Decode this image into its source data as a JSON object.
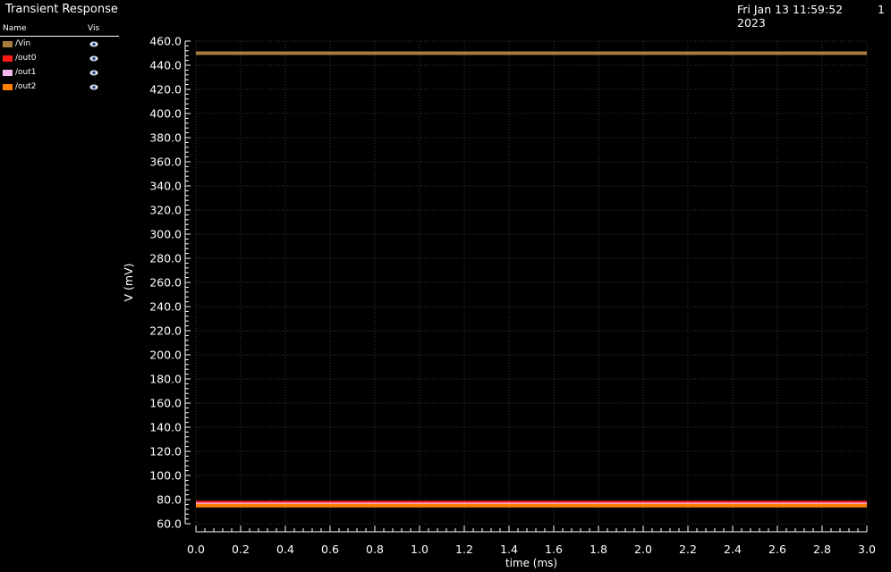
{
  "header": {
    "title": "Transient Response",
    "date": "Fri Jan 13 11:59:52 2023",
    "page": "1"
  },
  "legend": {
    "name_header": "Name",
    "vis_header": "Vis",
    "icon": "eye-icon"
  },
  "chart_data": {
    "type": "line",
    "xlabel": "time (ms)",
    "ylabel": "V (mV)",
    "xlim": [
      0.0,
      3.0
    ],
    "ylim": [
      60.0,
      460.0
    ],
    "x_ticks": [
      "0.0",
      "0.2",
      "0.4",
      "0.6",
      "0.8",
      "1.0",
      "1.2",
      "1.4",
      "1.6",
      "1.8",
      "2.0",
      "2.2",
      "2.4",
      "2.6",
      "2.8",
      "3.0"
    ],
    "y_ticks": [
      "460.0",
      "440.0",
      "420.0",
      "400.0",
      "380.0",
      "360.0",
      "340.0",
      "320.0",
      "300.0",
      "280.0",
      "260.0",
      "240.0",
      "220.0",
      "200.0",
      "180.0",
      "160.0",
      "140.0",
      "120.0",
      "100.0",
      "80.0",
      "60.0"
    ],
    "grid": true,
    "series": [
      {
        "name": "/Vin",
        "color": "#a87c3c",
        "x": [
          0.0,
          3.0
        ],
        "y": [
          450.0,
          450.0
        ]
      },
      {
        "name": "/out0",
        "color": "#ff1a1a",
        "x": [
          0.0,
          3.0
        ],
        "y": [
          77.5,
          77.5
        ]
      },
      {
        "name": "/out1",
        "color": "#f4b6f0",
        "x": [
          0.0,
          3.0
        ],
        "y": [
          76.0,
          76.0
        ]
      },
      {
        "name": "/out2",
        "color": "#ff8000",
        "x": [
          0.0,
          3.0
        ],
        "y": [
          75.0,
          75.0
        ]
      }
    ]
  }
}
